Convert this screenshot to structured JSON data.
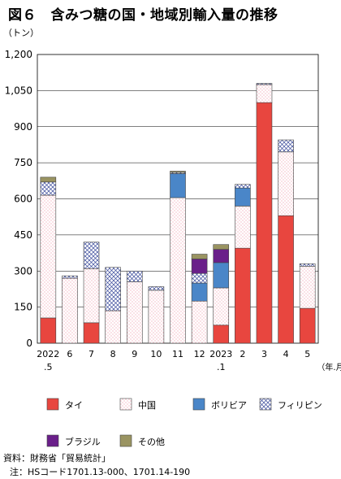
{
  "title": "図６　含みつ糖の国・地域別輸入量の推移",
  "source": "資料：財務省「貿易統計」",
  "note": "注：HSコード1701.13-000、1701.14-190",
  "chart_data": {
    "type": "bar",
    "stacked": true,
    "unit_label": "（トン）",
    "x_unit_label": "（年.月）",
    "categories": [
      [
        "2022",
        ".5"
      ],
      [
        "6"
      ],
      [
        "7"
      ],
      [
        "8"
      ],
      [
        "9"
      ],
      [
        "10"
      ],
      [
        "11"
      ],
      [
        "12"
      ],
      [
        "2023",
        ".1"
      ],
      [
        "2"
      ],
      [
        "3"
      ],
      [
        "4"
      ],
      [
        "5"
      ]
    ],
    "ylim": [
      0,
      1200
    ],
    "yticks": [
      0,
      150,
      300,
      450,
      600,
      750,
      900,
      1050,
      1200
    ],
    "ytick_labels": [
      "0",
      "150",
      "300",
      "450",
      "600",
      "750",
      "900",
      "1,050",
      "1,200"
    ],
    "grid": true,
    "legend_position": "bottom",
    "series": [
      {
        "name": "タイ",
        "color": "#e8463f",
        "pattern": "solid",
        "values": [
          105,
          0,
          85,
          0,
          0,
          0,
          0,
          0,
          75,
          395,
          1000,
          530,
          145
        ]
      },
      {
        "name": "中国",
        "color": "#f08a9a",
        "pattern": "dots",
        "values": [
          510,
          270,
          225,
          135,
          255,
          220,
          605,
          175,
          155,
          175,
          75,
          265,
          175
        ]
      },
      {
        "name": "ボリビア",
        "color": "#4a86c8",
        "pattern": "solid",
        "values": [
          0,
          0,
          0,
          0,
          0,
          0,
          100,
          75,
          105,
          75,
          0,
          0,
          0
        ]
      },
      {
        "name": "フィリピン",
        "color": "#3a4a9a",
        "pattern": "cross",
        "values": [
          55,
          10,
          110,
          180,
          45,
          15,
          5,
          40,
          0,
          15,
          5,
          50,
          10
        ]
      },
      {
        "name": "ブラジル",
        "color": "#6a1f8a",
        "pattern": "solid",
        "values": [
          0,
          0,
          0,
          0,
          0,
          0,
          0,
          60,
          55,
          0,
          0,
          0,
          0
        ]
      },
      {
        "name": "その他",
        "color": "#9a9462",
        "pattern": "solid",
        "values": [
          20,
          0,
          0,
          0,
          0,
          0,
          5,
          20,
          20,
          0,
          0,
          0,
          0
        ]
      }
    ]
  }
}
